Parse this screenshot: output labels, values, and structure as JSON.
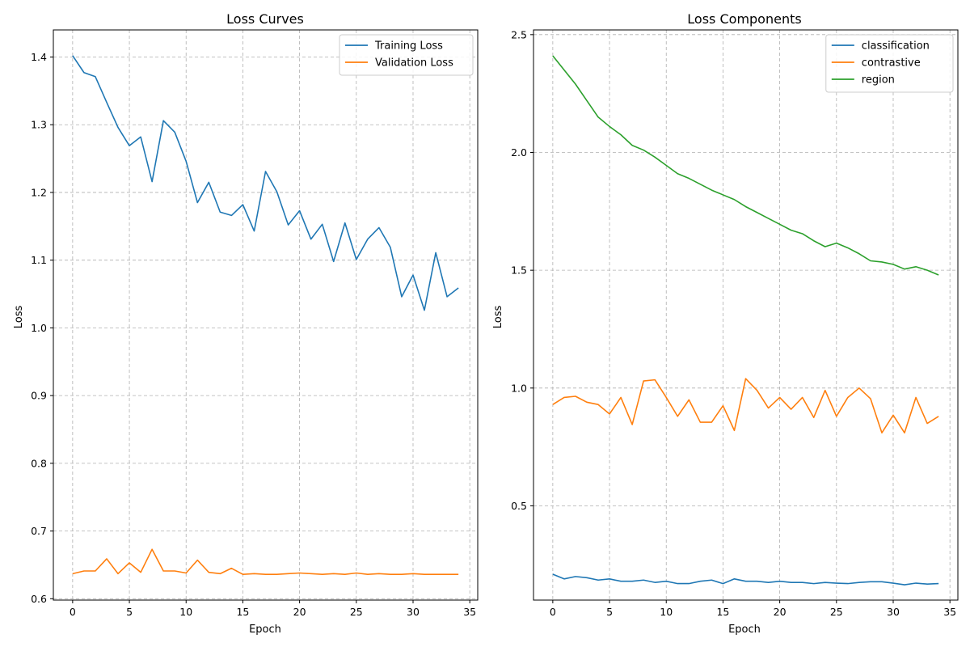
{
  "colors": {
    "blue": "#1f77b4",
    "orange": "#ff7f0e",
    "green": "#2ca02c"
  },
  "chart_data": [
    {
      "type": "line",
      "title": "Loss Curves",
      "xlabel": "Epoch",
      "ylabel": "Loss",
      "xlim": [
        -1.7,
        35.7
      ],
      "ylim": [
        0.598,
        1.44
      ],
      "xticks": [
        0,
        5,
        10,
        15,
        20,
        25,
        30,
        35
      ],
      "yticks": [
        0.6,
        0.7,
        0.8,
        0.9,
        1.0,
        1.1,
        1.2,
        1.3,
        1.4
      ],
      "ytick_labels": [
        "0.6",
        "0.7",
        "0.8",
        "0.9",
        "1.0",
        "1.1",
        "1.2",
        "1.3",
        "1.4"
      ],
      "grid": true,
      "legend_position": "top-right",
      "x": [
        0,
        1,
        2,
        3,
        4,
        5,
        6,
        7,
        8,
        9,
        10,
        11,
        12,
        13,
        14,
        15,
        16,
        17,
        18,
        19,
        20,
        21,
        22,
        23,
        24,
        25,
        26,
        27,
        28,
        29,
        30,
        31,
        32,
        33,
        34
      ],
      "series": [
        {
          "name": "Training Loss",
          "color": "#1f77b4",
          "values": [
            1.402,
            1.377,
            1.371,
            1.333,
            1.296,
            1.269,
            1.282,
            1.216,
            1.306,
            1.289,
            1.246,
            1.185,
            1.215,
            1.171,
            1.166,
            1.182,
            1.143,
            1.231,
            1.201,
            1.152,
            1.173,
            1.131,
            1.153,
            1.098,
            1.155,
            1.101,
            1.131,
            1.148,
            1.119,
            1.046,
            1.078,
            1.026,
            1.111,
            1.046,
            1.059
          ]
        },
        {
          "name": "Validation Loss",
          "color": "#ff7f0e",
          "values": [
            0.637,
            0.641,
            0.641,
            0.659,
            0.637,
            0.653,
            0.639,
            0.673,
            0.641,
            0.641,
            0.638,
            0.657,
            0.639,
            0.637,
            0.645,
            0.636,
            0.637,
            0.636,
            0.636,
            0.637,
            0.638,
            0.637,
            0.636,
            0.637,
            0.636,
            0.638,
            0.636,
            0.637,
            0.636,
            0.636,
            0.637,
            0.636,
            0.636,
            0.636,
            0.636
          ]
        }
      ]
    },
    {
      "type": "line",
      "title": "Loss Components",
      "xlabel": "Epoch",
      "ylabel": "Loss",
      "xlim": [
        -1.7,
        35.7
      ],
      "ylim": [
        0.1,
        2.52
      ],
      "xticks": [
        0,
        5,
        10,
        15,
        20,
        25,
        30,
        35
      ],
      "yticks": [
        0.5,
        1.0,
        1.5,
        2.0,
        2.5
      ],
      "ytick_labels": [
        "0.5",
        "1.0",
        "1.5",
        "2.0",
        "2.5"
      ],
      "grid": true,
      "legend_position": "top-right",
      "x": [
        0,
        1,
        2,
        3,
        4,
        5,
        6,
        7,
        8,
        9,
        10,
        11,
        12,
        13,
        14,
        15,
        16,
        17,
        18,
        19,
        20,
        21,
        22,
        23,
        24,
        25,
        26,
        27,
        28,
        29,
        30,
        31,
        32,
        33,
        34
      ],
      "series": [
        {
          "name": "classification",
          "color": "#1f77b4",
          "values": [
            0.21,
            0.19,
            0.2,
            0.195,
            0.185,
            0.19,
            0.18,
            0.18,
            0.185,
            0.175,
            0.18,
            0.17,
            0.17,
            0.18,
            0.185,
            0.17,
            0.19,
            0.18,
            0.18,
            0.175,
            0.18,
            0.175,
            0.175,
            0.17,
            0.175,
            0.172,
            0.17,
            0.175,
            0.178,
            0.178,
            0.172,
            0.165,
            0.172,
            0.168,
            0.17
          ]
        },
        {
          "name": "contrastive",
          "color": "#ff7f0e",
          "values": [
            0.93,
            0.96,
            0.965,
            0.94,
            0.93,
            0.89,
            0.96,
            0.845,
            1.03,
            1.035,
            0.96,
            0.88,
            0.95,
            0.855,
            0.855,
            0.925,
            0.82,
            1.04,
            0.99,
            0.915,
            0.96,
            0.91,
            0.96,
            0.875,
            0.99,
            0.88,
            0.96,
            1.0,
            0.955,
            0.81,
            0.885,
            0.81,
            0.96,
            0.85,
            0.88
          ]
        },
        {
          "name": "region",
          "color": "#2ca02c",
          "values": [
            2.41,
            2.35,
            2.29,
            2.22,
            2.15,
            2.11,
            2.075,
            2.03,
            2.01,
            1.98,
            1.945,
            1.91,
            1.89,
            1.865,
            1.84,
            1.82,
            1.8,
            1.77,
            1.745,
            1.72,
            1.695,
            1.67,
            1.655,
            1.625,
            1.6,
            1.615,
            1.595,
            1.57,
            1.54,
            1.535,
            1.525,
            1.505,
            1.515,
            1.5,
            1.48
          ]
        }
      ]
    }
  ]
}
